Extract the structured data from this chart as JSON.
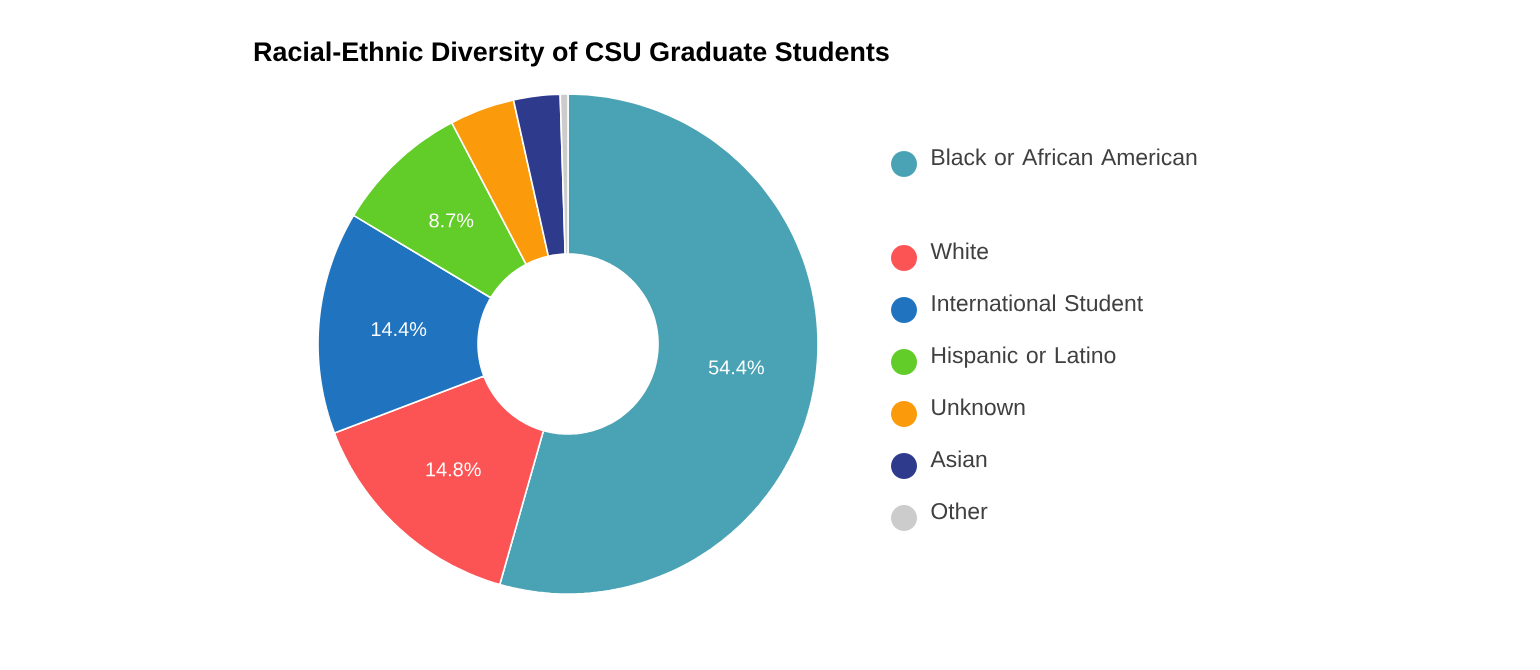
{
  "chart_data": {
    "type": "donut",
    "title": "Racial-Ethnic Diversity of CSU Graduate Students",
    "categories": [
      "Black or African American",
      "White",
      "International Student",
      "Hispanic or Latino",
      "Unknown",
      "Asian",
      "Other"
    ],
    "values": [
      54.4,
      14.8,
      14.4,
      8.7,
      4.2,
      3.0,
      0.5
    ],
    "colors": [
      "#4aa3b5",
      "#fc5455",
      "#2074bf",
      "#62cc28",
      "#fb9a0b",
      "#2e3a8c",
      "#cccccc"
    ],
    "value_labels": [
      "54.4%",
      "14.8%",
      "14.4%",
      "8.7%",
      null,
      null,
      null
    ],
    "legend": "right"
  }
}
